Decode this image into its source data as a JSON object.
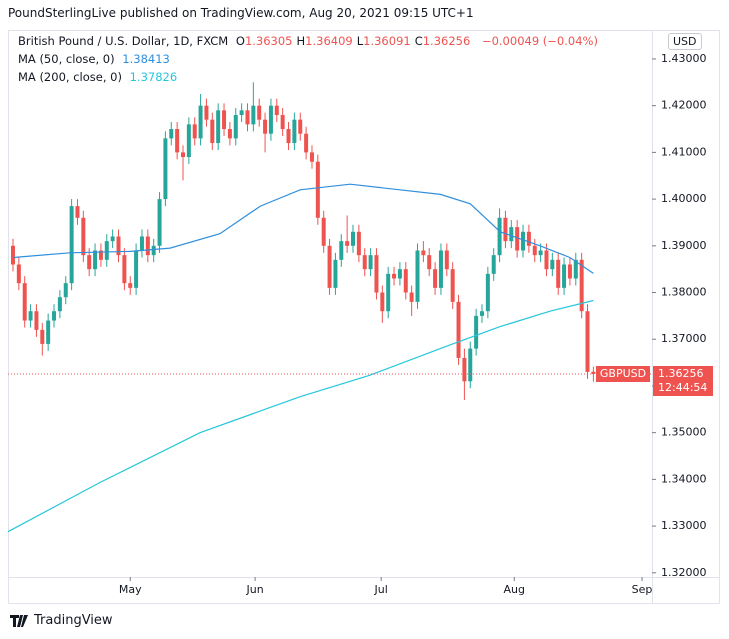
{
  "chart_data": {
    "type": "candlestick",
    "title": "PoundSterlingLive published on TradingView.com, Aug 20, 2021 09:15 UTC+1",
    "symbol": "British Pound / U.S. Dollar, 1D, FXCM",
    "legend_ohlc": [
      {
        "key": "O",
        "value": "1.36305"
      },
      {
        "key": "H",
        "value": "1.36409"
      },
      {
        "key": "L",
        "value": "1.36091"
      },
      {
        "key": "C",
        "value": "1.36256"
      }
    ],
    "change": "−0.00049 (−0.04%)",
    "currency": "USD",
    "current_symbol": "GBPUSD",
    "countdown": "12:44:54",
    "footer": "TradingView",
    "up_color": "#26a69a",
    "down_color": "#ef5350",
    "x": [
      0,
      1,
      2,
      3,
      4,
      5,
      6,
      7,
      8,
      9,
      10,
      11,
      12,
      13,
      14,
      15,
      16,
      17,
      18,
      19,
      20,
      21,
      22,
      23,
      24,
      25,
      26,
      27,
      28,
      29,
      30,
      31,
      32,
      33,
      34,
      35,
      36,
      37,
      38,
      39,
      40,
      41,
      42,
      43,
      44,
      45,
      46,
      47,
      48,
      49,
      50,
      51,
      52,
      53,
      54,
      55,
      56,
      57,
      58,
      59,
      60,
      61,
      62,
      63,
      64,
      65,
      66,
      67,
      68,
      69,
      70,
      71,
      72,
      73,
      74,
      75,
      76,
      77,
      78,
      79,
      80,
      81,
      82,
      83,
      84,
      85,
      86,
      87,
      88,
      89,
      90,
      91,
      92,
      93,
      94,
      95,
      96,
      97,
      98,
      99
    ],
    "open": [
      1.39,
      1.386,
      1.382,
      1.374,
      1.376,
      1.372,
      1.369,
      1.374,
      1.376,
      1.379,
      1.382,
      1.3985,
      1.396,
      1.388,
      1.385,
      1.389,
      1.387,
      1.391,
      1.392,
      1.388,
      1.382,
      1.381,
      1.389,
      1.392,
      1.388,
      1.39,
      1.4,
      1.413,
      1.415,
      1.41,
      1.409,
      1.416,
      1.413,
      1.42,
      1.417,
      1.412,
      1.419,
      1.415,
      1.413,
      1.418,
      1.419,
      1.416,
      1.42,
      1.417,
      1.414,
      1.42,
      1.418,
      1.415,
      1.412,
      1.417,
      1.414,
      1.41,
      1.408,
      1.396,
      1.39,
      1.381,
      1.387,
      1.391,
      1.39,
      1.393,
      1.388,
      1.385,
      1.388,
      1.38,
      1.376,
      1.384,
      1.383,
      1.385,
      1.38,
      1.378,
      1.389,
      1.388,
      1.385,
      1.381,
      1.389,
      1.385,
      1.378,
      1.366,
      1.361,
      1.368,
      1.375,
      1.376,
      1.384,
      1.388,
      1.396,
      1.391,
      1.394,
      1.389,
      1.393,
      1.39,
      1.388,
      1.389,
      1.385,
      1.387,
      1.381,
      1.386,
      1.383,
      1.387,
      1.376,
      1.36305
    ],
    "high": [
      1.3915,
      1.3875,
      1.3835,
      1.3775,
      1.3775,
      1.3735,
      1.3755,
      1.3775,
      1.3805,
      1.3835,
      1.4,
      1.4,
      1.3975,
      1.3895,
      1.3905,
      1.3905,
      1.3925,
      1.3935,
      1.3935,
      1.3895,
      1.3835,
      1.3905,
      1.3935,
      1.3935,
      1.3915,
      1.4015,
      1.4145,
      1.4165,
      1.4165,
      1.4115,
      1.4175,
      1.4175,
      1.4225,
      1.4215,
      1.4185,
      1.4205,
      1.4205,
      1.4165,
      1.4195,
      1.4205,
      1.4205,
      1.425,
      1.4215,
      1.4185,
      1.4215,
      1.4215,
      1.4195,
      1.4165,
      1.4185,
      1.4185,
      1.4155,
      1.4115,
      1.4095,
      1.3975,
      1.3915,
      1.3885,
      1.3925,
      1.3965,
      1.3945,
      1.3945,
      1.3895,
      1.3895,
      1.3895,
      1.3815,
      1.3855,
      1.3855,
      1.3865,
      1.3865,
      1.3815,
      1.3905,
      1.391,
      1.3895,
      1.3865,
      1.3905,
      1.3905,
      1.3865,
      1.3795,
      1.368,
      1.3695,
      1.3765,
      1.3775,
      1.3855,
      1.3895,
      1.398,
      1.3975,
      1.3955,
      1.3955,
      1.3945,
      1.3945,
      1.3915,
      1.3905,
      1.3905,
      1.3885,
      1.3885,
      1.3875,
      1.3875,
      1.3885,
      1.3885,
      1.3775,
      1.36409
    ],
    "low": [
      1.3845,
      1.3805,
      1.3725,
      1.3725,
      1.3705,
      1.3665,
      1.3675,
      1.3725,
      1.3745,
      1.3775,
      1.3805,
      1.3945,
      1.3865,
      1.3835,
      1.3835,
      1.3855,
      1.3855,
      1.3895,
      1.3865,
      1.3805,
      1.3795,
      1.3795,
      1.3875,
      1.3865,
      1.3865,
      1.3885,
      1.3985,
      1.4115,
      1.4085,
      1.404,
      1.4075,
      1.4115,
      1.4115,
      1.4155,
      1.4105,
      1.4105,
      1.4135,
      1.4115,
      1.4115,
      1.4165,
      1.4145,
      1.4145,
      1.4155,
      1.41,
      1.4125,
      1.4165,
      1.4135,
      1.4105,
      1.4105,
      1.4125,
      1.4085,
      1.4065,
      1.3945,
      1.3885,
      1.3795,
      1.3795,
      1.3855,
      1.3885,
      1.3885,
      1.3865,
      1.3835,
      1.3835,
      1.3785,
      1.3735,
      1.3745,
      1.3815,
      1.3815,
      1.3785,
      1.375,
      1.3765,
      1.3865,
      1.3835,
      1.3795,
      1.3795,
      1.3835,
      1.3765,
      1.3645,
      1.357,
      1.3595,
      1.3665,
      1.3735,
      1.3745,
      1.3825,
      1.3865,
      1.3895,
      1.3895,
      1.3875,
      1.3875,
      1.3885,
      1.3865,
      1.3865,
      1.3835,
      1.3835,
      1.3795,
      1.3795,
      1.3815,
      1.3815,
      1.3745,
      1.3615,
      1.36091
    ],
    "close": [
      1.386,
      1.382,
      1.374,
      1.376,
      1.372,
      1.369,
      1.374,
      1.376,
      1.379,
      1.382,
      1.3985,
      1.396,
      1.388,
      1.385,
      1.389,
      1.387,
      1.391,
      1.392,
      1.388,
      1.382,
      1.381,
      1.389,
      1.392,
      1.388,
      1.39,
      1.4,
      1.413,
      1.415,
      1.41,
      1.409,
      1.416,
      1.413,
      1.42,
      1.417,
      1.412,
      1.419,
      1.415,
      1.413,
      1.418,
      1.419,
      1.416,
      1.42,
      1.417,
      1.414,
      1.42,
      1.418,
      1.415,
      1.412,
      1.417,
      1.414,
      1.41,
      1.408,
      1.396,
      1.39,
      1.381,
      1.387,
      1.391,
      1.39,
      1.393,
      1.388,
      1.385,
      1.388,
      1.38,
      1.376,
      1.384,
      1.383,
      1.385,
      1.38,
      1.378,
      1.389,
      1.388,
      1.385,
      1.381,
      1.389,
      1.385,
      1.378,
      1.366,
      1.361,
      1.368,
      1.375,
      1.376,
      1.384,
      1.388,
      1.396,
      1.391,
      1.394,
      1.389,
      1.393,
      1.39,
      1.388,
      1.389,
      1.385,
      1.387,
      1.381,
      1.386,
      1.383,
      1.387,
      1.376,
      1.363,
      1.36256
    ],
    "series": [
      {
        "name": "MA (50, close, 0)",
        "value_label": "1.38413",
        "color": "#2f8fdd",
        "x": [
          0,
          9.7,
          20,
          26.8,
          35.3,
          42.2,
          49,
          57.5,
          66,
          72.9,
          78,
          83.1,
          89.9,
          95,
          99
        ],
        "values": [
          1.3875,
          1.3885,
          1.3888,
          1.3895,
          1.3926,
          1.3985,
          1.402,
          1.4032,
          1.402,
          1.401,
          1.399,
          1.393,
          1.39,
          1.3875,
          1.3841
        ]
      },
      {
        "name": "MA (200, close, 0)",
        "value_label": "1.37826",
        "color": "#26c6da",
        "x": [
          -0.85,
          14.8,
          31.9,
          49,
          60.9,
          74.6,
          83.1,
          91.6,
          99
        ],
        "values": [
          1.3288,
          1.3393,
          1.35,
          1.3577,
          1.3623,
          1.3688,
          1.3727,
          1.376,
          1.3783
        ]
      }
    ],
    "xlim": [
      -0.85,
      109.0
    ],
    "xticks": [
      {
        "value": 20,
        "label": "May"
      },
      {
        "value": 41.3,
        "label": "Jun"
      },
      {
        "value": 62.8,
        "label": "Jul"
      },
      {
        "value": 85.5,
        "label": "Aug"
      },
      {
        "value": 107.3,
        "label": "Sep"
      }
    ],
    "ylim": [
      1.3191,
      1.4362
    ],
    "yticks": [
      {
        "value": 1.32,
        "label": "1.32000"
      },
      {
        "value": 1.33,
        "label": "1.33000"
      },
      {
        "value": 1.34,
        "label": "1.34000"
      },
      {
        "value": 1.35,
        "label": "1.35000"
      },
      {
        "value": 1.36,
        "label": "1.36000"
      },
      {
        "value": 1.37,
        "label": "1.37000"
      },
      {
        "value": 1.38,
        "label": "1.38000"
      },
      {
        "value": 1.39,
        "label": "1.39000"
      },
      {
        "value": 1.4,
        "label": "1.40000"
      },
      {
        "value": 1.41,
        "label": "1.41000"
      },
      {
        "value": 1.42,
        "label": "1.42000"
      },
      {
        "value": 1.43,
        "label": "1.43000"
      }
    ]
  }
}
